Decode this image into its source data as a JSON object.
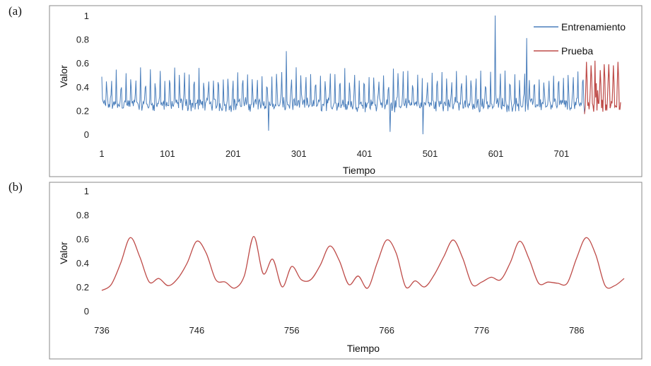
{
  "panels": {
    "a_label": "(a)",
    "b_label": "(b)"
  },
  "colors": {
    "train": "#4a7ebb",
    "test": "#be4b48",
    "frame": "#888888"
  },
  "chart_data": [
    {
      "type": "line",
      "panel": "(a)",
      "xlabel": "Tiempo",
      "ylabel": "Valor",
      "xlim": [
        1,
        791
      ],
      "ylim": [
        0,
        1
      ],
      "x_ticks": [
        "1",
        "101",
        "201",
        "301",
        "401",
        "501",
        "601",
        "701"
      ],
      "y_ticks": [
        "0",
        "0.2",
        "0.4",
        "0.6",
        "0.8",
        "1"
      ],
      "legend_position": "top-right",
      "series": [
        {
          "name": "Entrenamiento",
          "color": "#4a7ebb",
          "x_range": [
            1,
            736
          ],
          "description_of_shape": "periodic oscillation with period about 7-8, values mostly 0.2 to 0.55",
          "notable_points": [
            {
              "x": 255,
              "y": 0.03
            },
            {
              "x": 282,
              "y": 0.7
            },
            {
              "x": 440,
              "y": 0.02
            },
            {
              "x": 490,
              "y": 0.0
            },
            {
              "x": 600,
              "y": 1.0
            },
            {
              "x": 648,
              "y": 0.81
            }
          ]
        },
        {
          "name": "Prueba",
          "color": "#be4b48",
          "x_range": [
            736,
            791
          ]
        }
      ]
    },
    {
      "type": "line",
      "panel": "(b)",
      "xlabel": "Tiempo",
      "ylabel": "Valor",
      "xlim": [
        736,
        791
      ],
      "ylim": [
        0,
        1
      ],
      "x_ticks": [
        "736",
        "746",
        "756",
        "766",
        "776",
        "786"
      ],
      "y_ticks": [
        "0",
        "0.2",
        "0.4",
        "0.6",
        "0.8",
        "1"
      ],
      "series": [
        {
          "color": "#be4b48",
          "x": [
            736,
            737,
            738,
            739,
            740,
            741,
            742,
            743,
            744,
            745,
            746,
            747,
            748,
            749,
            750,
            751,
            752,
            753,
            754,
            755,
            756,
            757,
            758,
            759,
            760,
            761,
            762,
            763,
            764,
            765,
            766,
            767,
            768,
            769,
            770,
            771,
            772,
            773,
            774,
            775,
            776,
            777,
            778,
            779,
            780,
            781,
            782,
            783,
            784,
            785,
            786,
            787,
            788,
            789,
            790,
            791
          ],
          "y": [
            0.17,
            0.22,
            0.4,
            0.61,
            0.45,
            0.24,
            0.27,
            0.21,
            0.27,
            0.4,
            0.58,
            0.48,
            0.26,
            0.24,
            0.19,
            0.29,
            0.62,
            0.31,
            0.43,
            0.2,
            0.37,
            0.26,
            0.26,
            0.38,
            0.54,
            0.42,
            0.22,
            0.29,
            0.19,
            0.4,
            0.59,
            0.48,
            0.2,
            0.25,
            0.2,
            0.3,
            0.45,
            0.59,
            0.44,
            0.22,
            0.24,
            0.28,
            0.26,
            0.4,
            0.58,
            0.43,
            0.23,
            0.24,
            0.23,
            0.23,
            0.44,
            0.61,
            0.47,
            0.21,
            0.21,
            0.27
          ]
        }
      ]
    }
  ]
}
